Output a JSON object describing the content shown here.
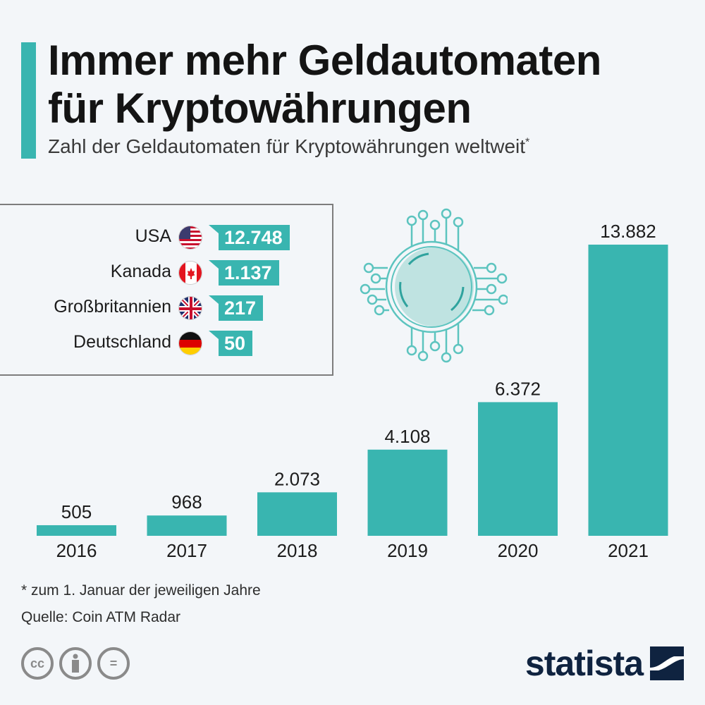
{
  "header": {
    "title_line1": "Immer mehr Geldautomaten",
    "title_line2": "für Kryptowährungen",
    "subtitle": "Zahl der Geldautomaten für Kryptowährungen weltweit",
    "subtitle_marker": "*"
  },
  "legend": {
    "items": [
      {
        "label": "USA",
        "flag": "us-flag-icon",
        "value": "12.748"
      },
      {
        "label": "Kanada",
        "flag": "canada-flag-icon",
        "value": "1.137"
      },
      {
        "label": "Großbritannien",
        "flag": "uk-flag-icon",
        "value": "217"
      },
      {
        "label": "Deutschland",
        "flag": "germany-flag-icon",
        "value": "50"
      }
    ]
  },
  "illustration": "crypto-chip-icon",
  "chart_data": {
    "type": "bar",
    "title": "Zahl der Geldautomaten für Kryptowährungen weltweit",
    "xlabel": "",
    "ylabel": "",
    "categories": [
      "2016",
      "2017",
      "2018",
      "2019",
      "2020",
      "2021"
    ],
    "values": [
      505,
      968,
      2073,
      4108,
      6372,
      13882
    ],
    "value_labels": [
      "505",
      "968",
      "2.073",
      "4.108",
      "6.372",
      "13.882"
    ],
    "ylim": [
      0,
      13882
    ],
    "grid": false,
    "color": "#39b5b0"
  },
  "footer": {
    "footnote": "* zum 1. Januar der jeweiligen Jahre",
    "source": "Quelle: Coin ATM Radar",
    "license_icons": [
      "cc-icon",
      "attribution-icon",
      "no-derivatives-icon"
    ],
    "cc_label": "cc",
    "nd_label": "=",
    "brand": "statista"
  }
}
